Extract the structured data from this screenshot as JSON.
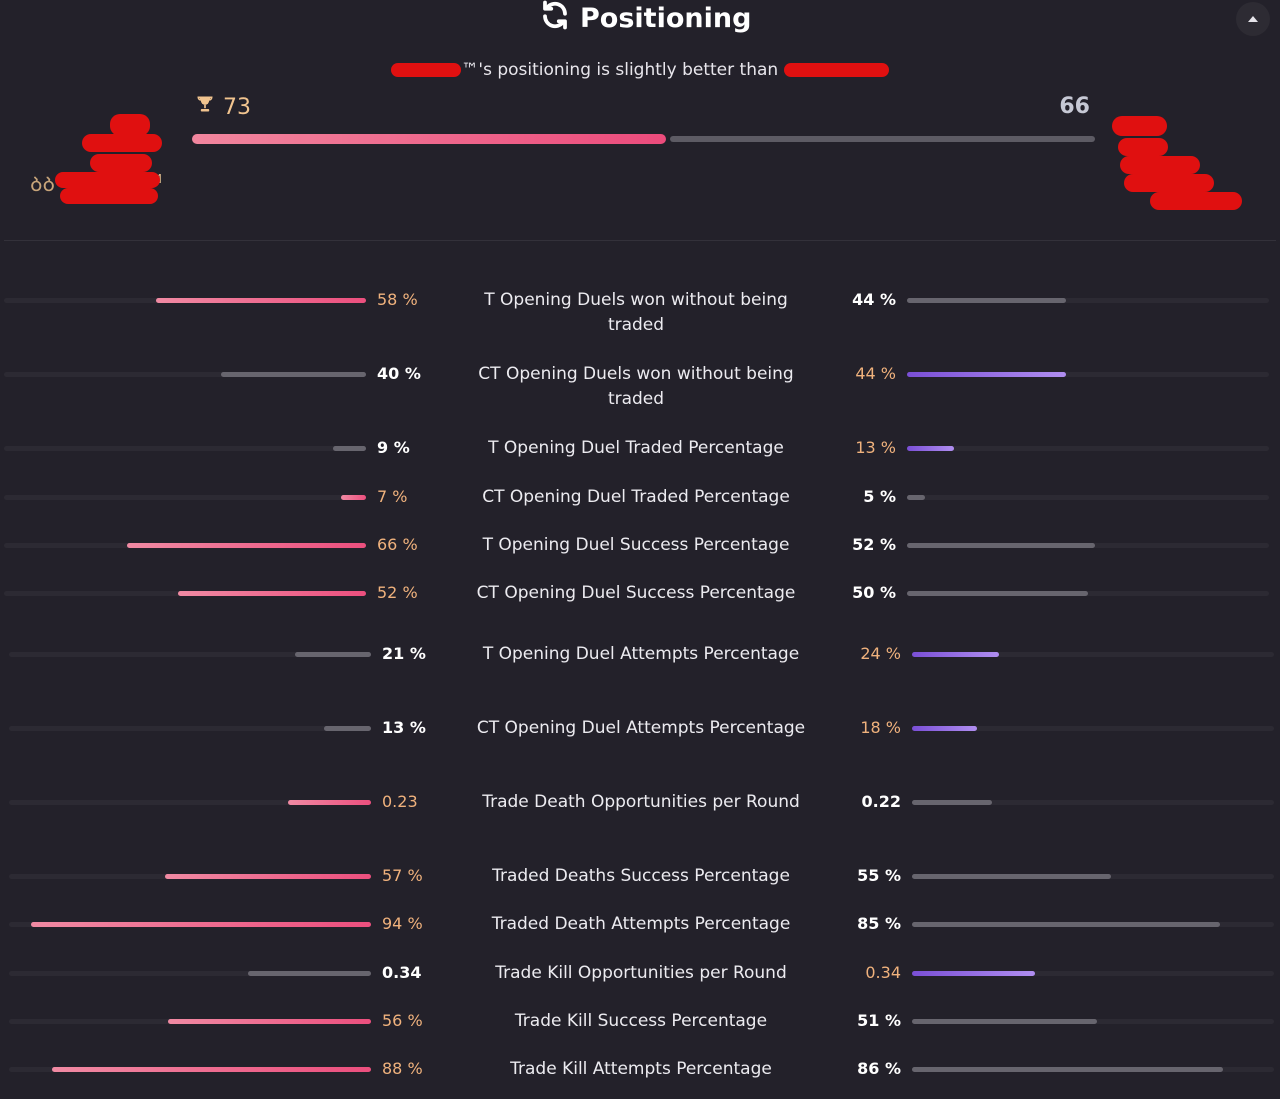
{
  "header": {
    "title": "Positioning",
    "summary_text": "™'s positioning is slightly better than",
    "left_score": "73",
    "right_score": "66",
    "left_score_value": 73,
    "right_score_value": 66,
    "left_player_tag": "ᲑᲑ",
    "left_player_suffix": "M"
  },
  "colors": {
    "background": "#23212a",
    "left_accent": "#ec4b7c",
    "right_accent": "#9b72ea",
    "win_value": "#f0b27d",
    "neutral_bar": "#67656e"
  },
  "stats": [
    {
      "label": "T Opening Duels won without being traded",
      "left": "58 %",
      "right": "44 %",
      "lv": 58,
      "rv": 44,
      "max": 100,
      "winner": "left"
    },
    {
      "label": "CT Opening Duels won without being traded",
      "left": "40 %",
      "right": "44 %",
      "lv": 40,
      "rv": 44,
      "max": 100,
      "winner": "right"
    },
    {
      "label": "T Opening Duel Traded Percentage",
      "left": "9 %",
      "right": "13 %",
      "lv": 9,
      "rv": 13,
      "max": 100,
      "winner": "right"
    },
    {
      "label": "CT Opening Duel Traded Percentage",
      "left": "7 %",
      "right": "5 %",
      "lv": 7,
      "rv": 5,
      "max": 100,
      "winner": "left"
    },
    {
      "label": "T Opening Duel Success Percentage",
      "left": "66 %",
      "right": "52 %",
      "lv": 66,
      "rv": 52,
      "max": 100,
      "winner": "left"
    },
    {
      "label": "CT Opening Duel Success Percentage",
      "left": "52 %",
      "right": "50 %",
      "lv": 52,
      "rv": 50,
      "max": 100,
      "winner": "left"
    },
    {
      "label": "T Opening Duel Attempts Percentage",
      "left": "21 %",
      "right": "24 %",
      "lv": 21,
      "rv": 24,
      "max": 100,
      "winner": "right"
    },
    {
      "label": "CT Opening Duel Attempts Percentage",
      "left": "13 %",
      "right": "18 %",
      "lv": 13,
      "rv": 18,
      "max": 100,
      "winner": "right"
    },
    {
      "label": "Trade Death Opportunities per Round",
      "left": "0.23",
      "right": "0.22",
      "lv": 0.23,
      "rv": 0.22,
      "max": 1,
      "winner": "left"
    },
    {
      "label": "Traded Deaths Success Percentage",
      "left": "57 %",
      "right": "55 %",
      "lv": 57,
      "rv": 55,
      "max": 100,
      "winner": "left"
    },
    {
      "label": "Traded Death Attempts Percentage",
      "left": "94 %",
      "right": "85 %",
      "lv": 94,
      "rv": 85,
      "max": 100,
      "winner": "left"
    },
    {
      "label": "Trade Kill Opportunities per Round",
      "left": "0.34",
      "right": "0.34",
      "lv": 0.34,
      "rv": 0.34,
      "max": 1,
      "winner": "right"
    },
    {
      "label": "Trade Kill Success Percentage",
      "left": "56 %",
      "right": "51 %",
      "lv": 56,
      "rv": 51,
      "max": 100,
      "winner": "left"
    },
    {
      "label": "Trade Kill Attempts Percentage",
      "left": "88 %",
      "right": "86 %",
      "lv": 88,
      "rv": 86,
      "max": 100,
      "winner": "left"
    }
  ]
}
